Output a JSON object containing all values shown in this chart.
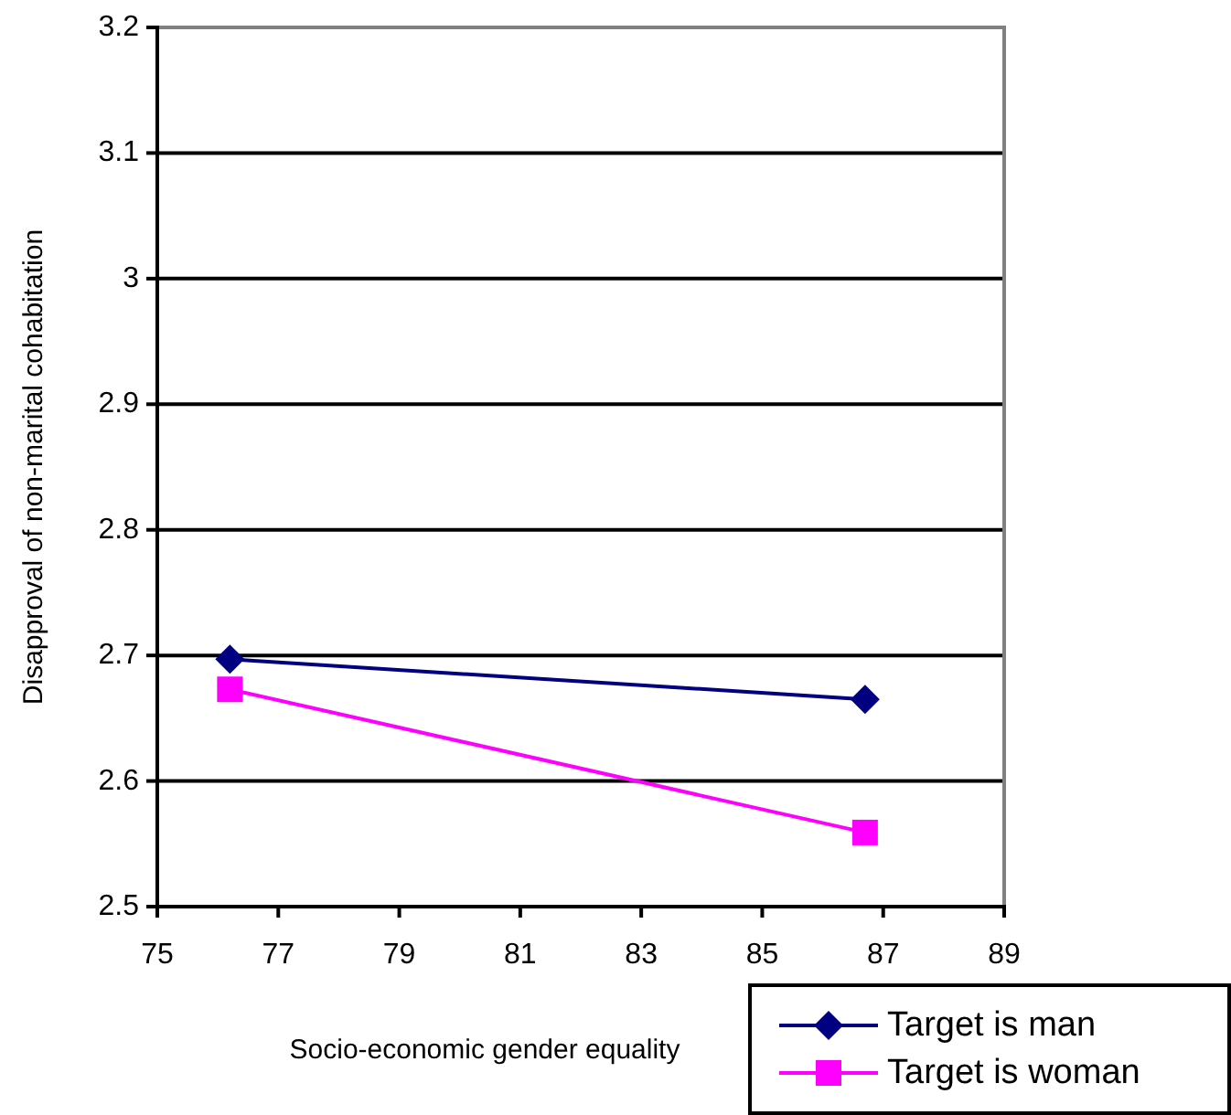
{
  "chart_data": {
    "type": "line",
    "xlabel": "Socio-economic gender equality",
    "ylabel": "Disapproval of non-marital cohabitation",
    "x": [
      76.2,
      86.7
    ],
    "series": [
      {
        "name": "Target is man",
        "color": "#000080",
        "marker": "diamond",
        "values": [
          2.697,
          2.665
        ]
      },
      {
        "name": "Target is woman",
        "color": "#ff00ff",
        "marker": "square",
        "values": [
          2.673,
          2.559
        ]
      }
    ],
    "xlim": [
      75,
      89
    ],
    "xticks": [
      75,
      77,
      79,
      81,
      83,
      85,
      87,
      89
    ],
    "ylim": [
      2.5,
      3.2
    ],
    "yticks": [
      2.5,
      2.6,
      2.7,
      2.8,
      2.9,
      3,
      3.1,
      3.2
    ],
    "grid": "y",
    "legend": "bottom right"
  }
}
